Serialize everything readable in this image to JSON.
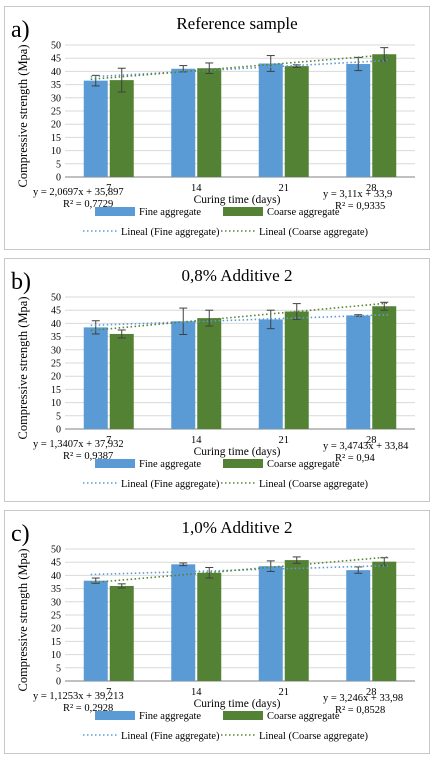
{
  "colors": {
    "fine": "#5b9bd5",
    "coarse": "#548235",
    "grid": "#d9d9d9",
    "axis": "#000000"
  },
  "chart_data": [
    {
      "type": "bar",
      "panel_label": "a)",
      "title": "Reference sample",
      "xlabel": "Curing time (days)",
      "ylabel": "Compressive strength (Mpa)",
      "ylim": [
        0,
        50
      ],
      "yticks": [
        "0",
        "5",
        "10",
        "15",
        "20",
        "25",
        "30",
        "35",
        "40",
        "45",
        "50"
      ],
      "categories": [
        "7",
        "14",
        "21",
        "28"
      ],
      "grid": true,
      "legend_position": "bottom",
      "series": [
        {
          "name": "Fine aggregate",
          "values": [
            36.5,
            41.0,
            43.0,
            42.8
          ],
          "errors": [
            2.0,
            1.2,
            3.0,
            2.5
          ]
        },
        {
          "name": "Coarse aggregate",
          "values": [
            36.7,
            41.2,
            42.0,
            46.5
          ],
          "errors": [
            4.5,
            2.0,
            0.5,
            2.5
          ]
        }
      ],
      "trendlines": [
        {
          "name": "Lineal (Fine aggregate)",
          "equation": "y = 2,0697x + 35,897",
          "r2": "R² = 0,7729",
          "slope": 2.0697,
          "intercept": 35.897
        },
        {
          "name": "Lineal (Coarse aggregate)",
          "equation": "y = 3,11x + 33,9",
          "r2": "R² = 0,9335",
          "slope": 3.11,
          "intercept": 33.9
        }
      ]
    },
    {
      "type": "bar",
      "panel_label": "b)",
      "title": "0,8% Additive 2",
      "xlabel": "Curing time (days)",
      "ylabel": "Compressive strength (Mpa)",
      "ylim": [
        0,
        50
      ],
      "yticks": [
        "0",
        "5",
        "10",
        "15",
        "20",
        "25",
        "30",
        "35",
        "40",
        "45",
        "50"
      ],
      "categories": [
        "7",
        "14",
        "21",
        "28"
      ],
      "grid": true,
      "legend_position": "bottom",
      "series": [
        {
          "name": "Fine aggregate",
          "values": [
            38.5,
            40.8,
            41.5,
            43.0
          ],
          "errors": [
            2.5,
            5.0,
            3.5,
            0.3
          ]
        },
        {
          "name": "Coarse aggregate",
          "values": [
            36.0,
            42.0,
            44.5,
            46.5
          ],
          "errors": [
            1.5,
            3.0,
            3.0,
            1.5
          ]
        }
      ],
      "trendlines": [
        {
          "name": "Lineal (Fine aggregate)",
          "equation": "y = 1,3407x + 37,932",
          "r2": "R² = 0,9387",
          "slope": 1.3407,
          "intercept": 37.932
        },
        {
          "name": "Lineal (Coarse aggregate)",
          "equation": "y = 3,4743x + 33,84",
          "r2": "R² = 0,94",
          "slope": 3.4743,
          "intercept": 33.84
        }
      ]
    },
    {
      "type": "bar",
      "panel_label": "c)",
      "title": "1,0% Additive 2",
      "xlabel": "Curing time (days)",
      "ylabel": "Compressive strength (Mpa)",
      "ylim": [
        0,
        50
      ],
      "yticks": [
        "0",
        "5",
        "10",
        "15",
        "20",
        "25",
        "30",
        "35",
        "40",
        "45",
        "50"
      ],
      "categories": [
        "7",
        "14",
        "21",
        "28"
      ],
      "grid": true,
      "legend_position": "bottom",
      "series": [
        {
          "name": "Fine aggregate",
          "values": [
            38.0,
            44.2,
            43.5,
            42.0
          ],
          "errors": [
            1.0,
            0.5,
            2.0,
            1.2
          ]
        },
        {
          "name": "Coarse aggregate",
          "values": [
            36.0,
            41.0,
            45.8,
            45.2
          ],
          "errors": [
            0.8,
            2.0,
            1.2,
            1.5
          ]
        }
      ],
      "trendlines": [
        {
          "name": "Lineal (Fine aggregate)",
          "equation": "y = 1,1253x + 39,213",
          "r2": "R² = 0,2928",
          "slope": 1.1253,
          "intercept": 39.213
        },
        {
          "name": "Lineal (Coarse aggregate)",
          "equation": "y = 3,246x + 33,98",
          "r2": "R² = 0,8528",
          "slope": 3.246,
          "intercept": 33.98
        }
      ]
    }
  ]
}
